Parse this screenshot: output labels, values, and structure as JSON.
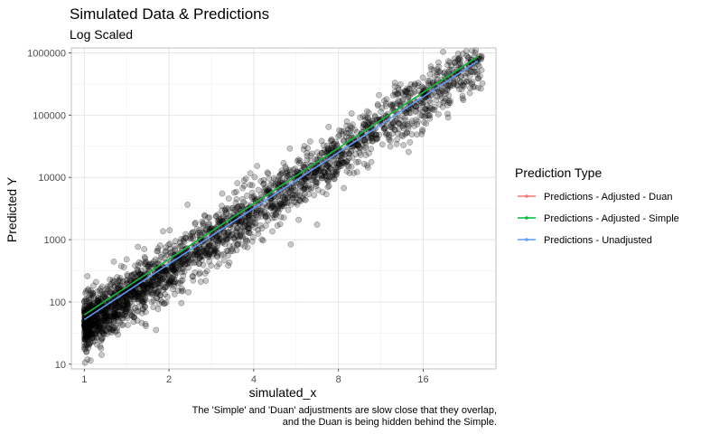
{
  "chart_data": {
    "type": "scatter",
    "title": "Simulated Data & Predictions",
    "subtitle": "Log Scaled",
    "xlabel": "simulated_x",
    "ylabel": "Predicted Y",
    "x_scale": "log2",
    "y_scale": "log10",
    "xlim": [
      0.9,
      29
    ],
    "ylim": [
      8.4,
      1200000
    ],
    "x_ticks": [
      1,
      2,
      4,
      8,
      16
    ],
    "x_tick_labels": [
      "1",
      "2",
      "4",
      "8",
      "16"
    ],
    "y_ticks": [
      10,
      100,
      1000,
      10000,
      100000,
      1000000
    ],
    "y_tick_labels": [
      "10",
      "100",
      "1000",
      "10000",
      "100000",
      "1000000"
    ],
    "grid": true,
    "legend_position": "right",
    "legend_title": "Prediction Type",
    "scatter_model": {
      "x_range": [
        1,
        26
      ],
      "y_at_x1": 42,
      "log10_slope_per_log10x": 3.03,
      "log10_noise_sd": 0.22,
      "point_color": "#000000",
      "point_alpha": 0.22
    },
    "series": [
      {
        "name": "Predictions - Adjusted - Duan",
        "color": "#F8766D",
        "x": [
          1,
          25
        ],
        "y": [
          62,
          870000
        ]
      },
      {
        "name": "Predictions - Adjusted - Simple",
        "color": "#00BA38",
        "x": [
          1,
          25
        ],
        "y": [
          62,
          870000
        ]
      },
      {
        "name": "Predictions - Unadjusted",
        "color": "#619CFF",
        "x": [
          1,
          25
        ],
        "y": [
          52,
          740000
        ]
      }
    ],
    "caption_lines": [
      "The 'Simple' and 'Duan' adjustments are slow close that they overlap,",
      "and the Duan is being hidden behind the Simple."
    ]
  }
}
